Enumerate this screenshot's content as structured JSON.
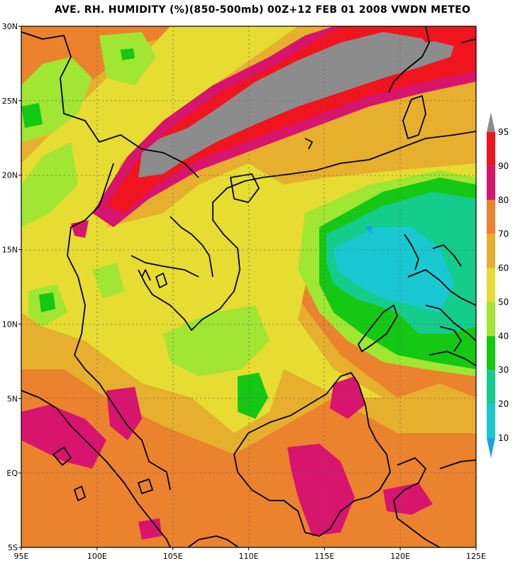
{
  "title": "AVE. RH. HUMIDITY (%)(850-500mb) 00Z+12 FEB 01 2008 VWDN METEO",
  "lat_ticks": [
    {
      "lat": 30,
      "label": "30N"
    },
    {
      "lat": 25,
      "label": "25N"
    },
    {
      "lat": 20,
      "label": "20N"
    },
    {
      "lat": 15,
      "label": "15N"
    },
    {
      "lat": 10,
      "label": "10N"
    },
    {
      "lat": 5,
      "label": "5N"
    },
    {
      "lat": 0,
      "label": "EQ"
    },
    {
      "lat": -5,
      "label": "5S"
    }
  ],
  "lon_ticks": [
    {
      "lon": 95,
      "label": "95E"
    },
    {
      "lon": 100,
      "label": "100E"
    },
    {
      "lon": 105,
      "label": "105E"
    },
    {
      "lon": 110,
      "label": "110E"
    },
    {
      "lon": 115,
      "label": "115E"
    },
    {
      "lon": 120,
      "label": "120E"
    },
    {
      "lon": 125,
      "label": "125E"
    }
  ],
  "extent": {
    "lon_min": 95,
    "lon_max": 125,
    "lat_min": -5,
    "lat_max": 30
  },
  "colorbar": {
    "levels": [
      "10",
      "20",
      "30",
      "40",
      "50",
      "60",
      "70",
      "80",
      "90",
      "95"
    ],
    "colors": [
      "#1ea0e6",
      "#19c8d2",
      "#14cc8c",
      "#14c814",
      "#a0e632",
      "#e6dc32",
      "#e6af2d",
      "#eb822d",
      "#d7146e",
      "#f0141e",
      "#8c8c8c"
    ]
  }
}
